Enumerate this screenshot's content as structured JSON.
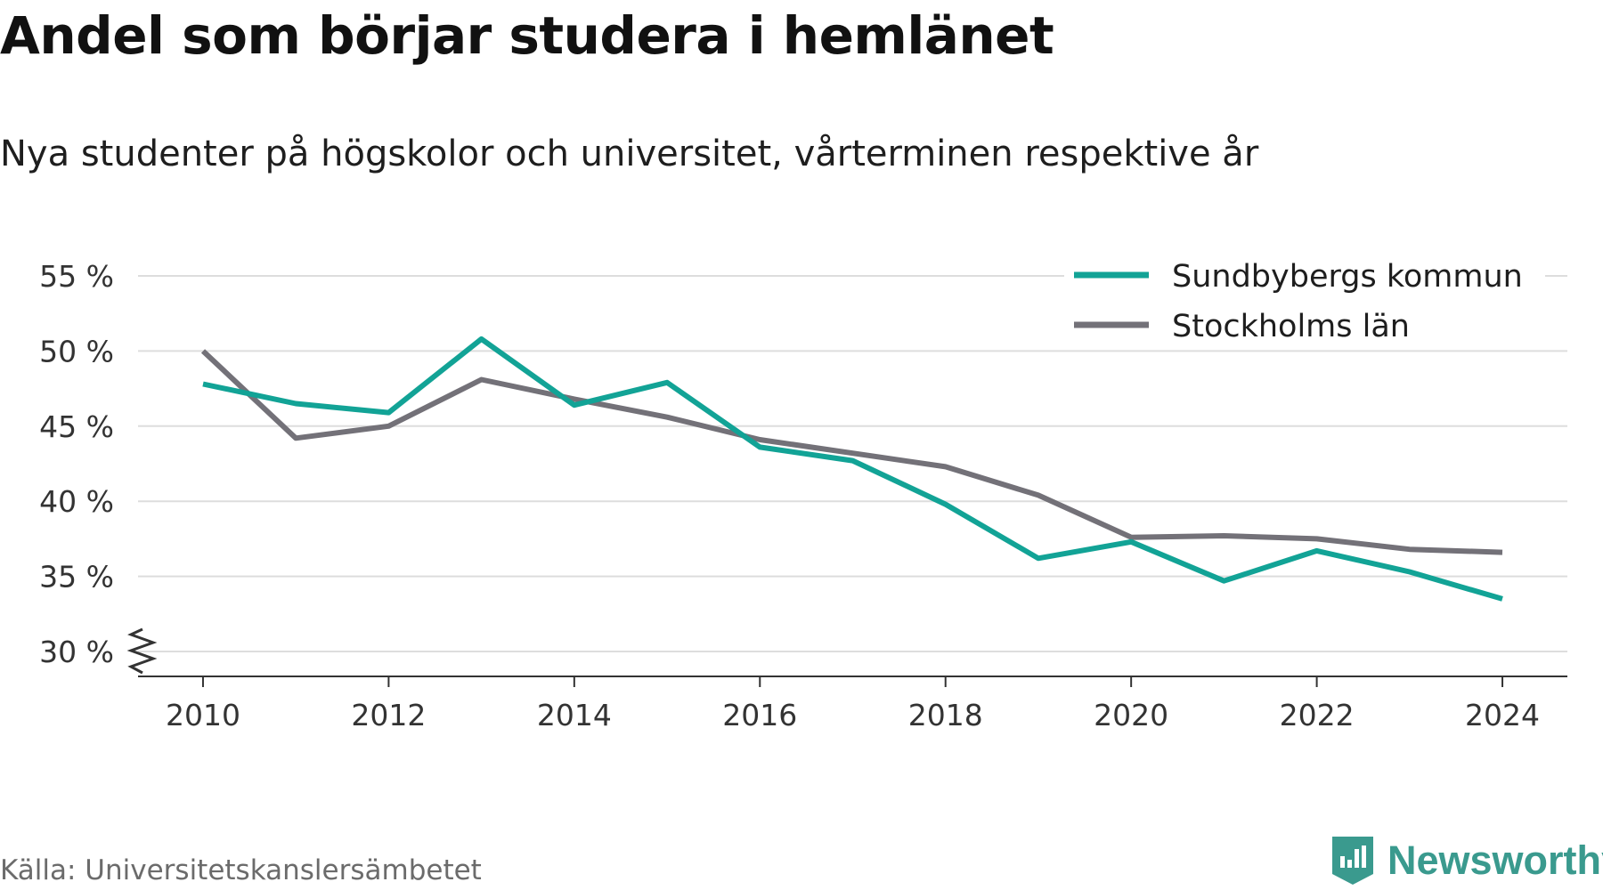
{
  "title": "Andel som börjar studera i hemlänet",
  "subtitle": "Nya studenter på högskolor och universitet, vårterminen respektive år",
  "source": "Källa: Universitetskanslersämbetet",
  "brand": "Newsworthy",
  "colors": {
    "sundbyberg": "#12a396",
    "stockholm": "#737178",
    "grid": "#dddddd",
    "axis": "#333333",
    "brand": "#3a9a8e"
  },
  "chart_data": {
    "type": "line",
    "x": [
      2010,
      2011,
      2012,
      2013,
      2014,
      2015,
      2016,
      2017,
      2018,
      2019,
      2020,
      2021,
      2022,
      2023,
      2024
    ],
    "series": [
      {
        "name": "Sundbybergs kommun",
        "color": "#12a396",
        "values": [
          47.8,
          46.5,
          45.9,
          50.8,
          46.4,
          47.9,
          43.6,
          42.7,
          39.8,
          36.2,
          37.3,
          34.7,
          36.7,
          35.3,
          33.5
        ]
      },
      {
        "name": "Stockholms län",
        "color": "#737178",
        "values": [
          50.0,
          44.2,
          45.0,
          48.1,
          46.8,
          45.6,
          44.1,
          43.2,
          42.3,
          40.4,
          37.6,
          37.7,
          37.5,
          36.8,
          36.6
        ]
      }
    ],
    "xticks": [
      2010,
      2012,
      2014,
      2016,
      2018,
      2020,
      2022,
      2024
    ],
    "xtick_labels": [
      "2010",
      "2012",
      "2014",
      "2016",
      "2018",
      "2020",
      "2022",
      "2024"
    ],
    "yticks": [
      30,
      35,
      40,
      45,
      50,
      55
    ],
    "ytick_labels": [
      "30 %",
      "35 %",
      "40 %",
      "45 %",
      "50 %",
      "55 %"
    ],
    "xlim": [
      2009.3,
      2024.7
    ],
    "ylim": [
      30,
      55
    ],
    "y_axis_break": true,
    "grid": true,
    "legend_position": "top-right"
  }
}
